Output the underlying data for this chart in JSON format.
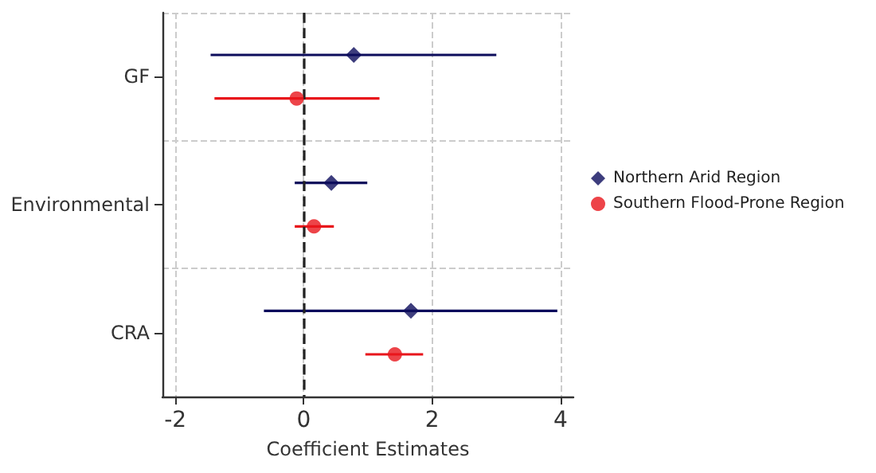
{
  "chart_data": {
    "type": "scatter",
    "orientation": "horizontal",
    "xlabel": "Coefficient Estimates",
    "categories": [
      "GF",
      "Environmental",
      "CRA"
    ],
    "series": [
      {
        "name": "Northern Arid Region",
        "color": "#0d0d5c",
        "marker": "diamond",
        "values": [
          0.78,
          0.43,
          1.67
        ],
        "errors": [
          [
            -1.45,
            3.0
          ],
          [
            -0.14,
            0.99
          ],
          [
            -0.62,
            3.95
          ]
        ]
      },
      {
        "name": "Southern Flood-Prone Region",
        "color": "#e8151b",
        "marker": "circle",
        "values": [
          -0.11,
          0.16,
          1.42
        ],
        "errors": [
          [
            -1.39,
            1.18
          ],
          [
            -0.14,
            0.47
          ],
          [
            0.96,
            1.86
          ]
        ]
      }
    ],
    "xlim": [
      -2.2,
      4.2
    ],
    "xticks": [
      -2,
      0,
      2,
      4
    ],
    "ref_lines": [
      {
        "axis": "x",
        "value": 0,
        "color": "#222222",
        "line_style": "dashed"
      }
    ],
    "grid": true,
    "legend": "right"
  }
}
